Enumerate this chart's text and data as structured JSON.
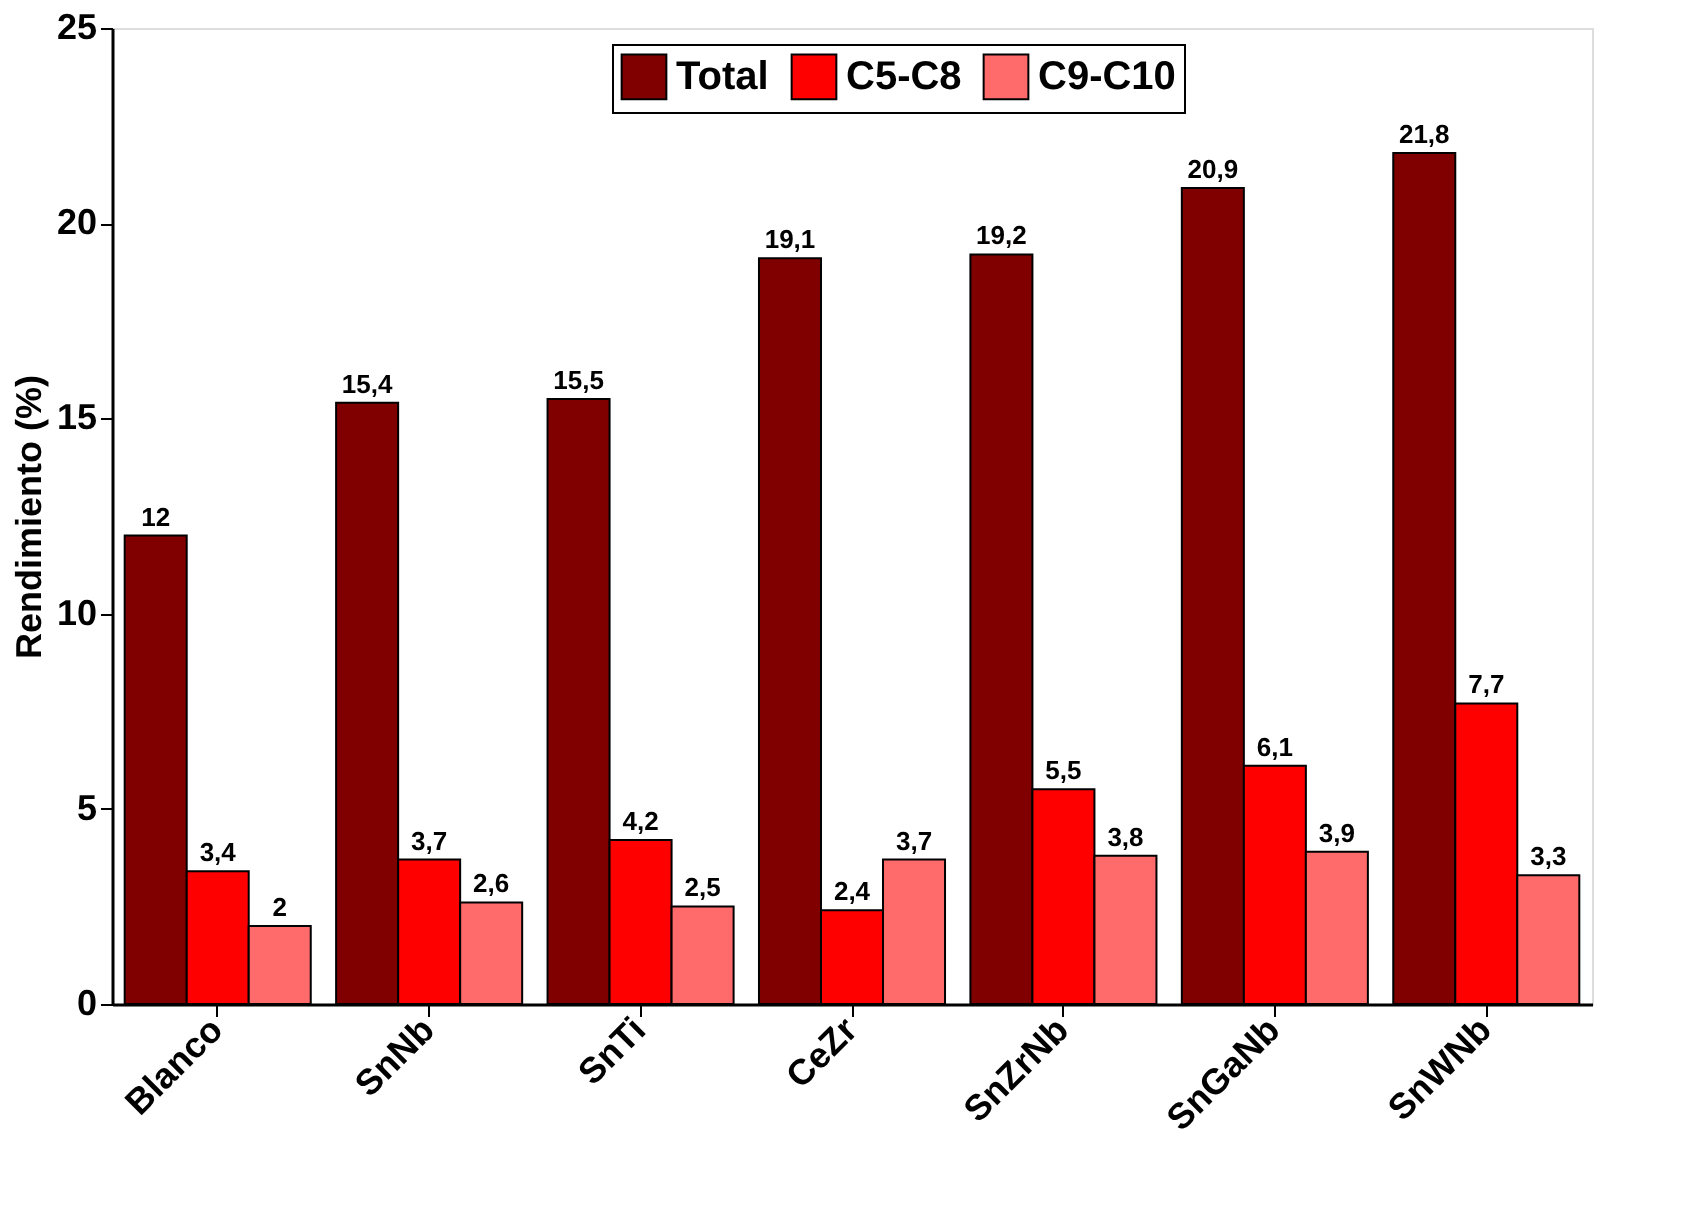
{
  "chart_data": {
    "type": "bar",
    "ylabel": "Rendimiento (%)",
    "categories": [
      "Blanco",
      "SnNb",
      "SnTi",
      "CeZr",
      "SnZrNb",
      "SnGaNb",
      "SnWNb"
    ],
    "series": [
      {
        "name": "Total",
        "color": "#800000",
        "values": [
          12,
          15.4,
          15.5,
          19.1,
          19.2,
          20.9,
          21.8
        ],
        "value_labels": [
          "12",
          "15,4",
          "15,5",
          "19,1",
          "19,2",
          "20,9",
          "21,8"
        ]
      },
      {
        "name": "C5-C8",
        "color": "#ff0000",
        "values": [
          3.4,
          3.7,
          4.2,
          2.4,
          5.5,
          6.1,
          7.7
        ],
        "value_labels": [
          "3,4",
          "3,7",
          "4,2",
          "2,4",
          "5,5",
          "6,1",
          "7,7"
        ]
      },
      {
        "name": "C9-C10",
        "color": "#ff6a6a",
        "values": [
          2,
          2.6,
          2.5,
          3.7,
          3.8,
          3.9,
          3.3
        ],
        "value_labels": [
          "2",
          "2,6",
          "2,5",
          "3,7",
          "3,8",
          "3,9",
          "3,3"
        ]
      }
    ],
    "ylim": [
      0,
      25
    ],
    "yticks": [
      0,
      5,
      10,
      15,
      20,
      25
    ],
    "grid": false,
    "legend": "top"
  }
}
